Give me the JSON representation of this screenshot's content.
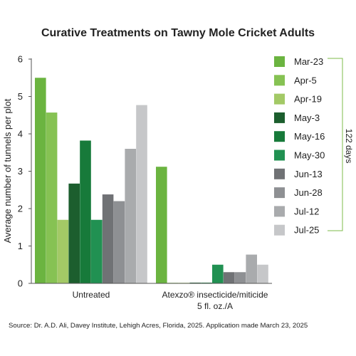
{
  "chart_data": {
    "type": "bar",
    "title": "Curative Treatments on Tawny Mole Cricket Adults",
    "ylabel": "Average number of tunnels per plot",
    "xlabel": "",
    "ylim": [
      0,
      6
    ],
    "yticks": [
      "0",
      "1",
      "2",
      "3",
      "4",
      "5",
      "6"
    ],
    "grid": false,
    "legend_position": "right",
    "categories": [
      {
        "line1": "Untreated",
        "line2": ""
      },
      {
        "line1": "Atexzo® insecticide/miticide",
        "line2": "5 fl. oz./A"
      }
    ],
    "series": [
      {
        "name": "Mar-23",
        "color": "#6bb440",
        "values": [
          5.5,
          3.12
        ]
      },
      {
        "name": "Apr-5",
        "color": "#86c253",
        "values": [
          4.57,
          0
        ]
      },
      {
        "name": "Apr-19",
        "color": "#a3c966",
        "values": [
          1.7,
          0
        ]
      },
      {
        "name": "May-3",
        "color": "#1c5e2e",
        "values": [
          2.67,
          0.02
        ]
      },
      {
        "name": "May-16",
        "color": "#177a3a",
        "values": [
          3.82,
          0.02
        ]
      },
      {
        "name": "May-30",
        "color": "#219152",
        "values": [
          1.7,
          0.5
        ]
      },
      {
        "name": "Jun-13",
        "color": "#707275",
        "values": [
          2.38,
          0.3
        ]
      },
      {
        "name": "Jun-28",
        "color": "#8e9093",
        "values": [
          2.2,
          0.3
        ]
      },
      {
        "name": "Jul-12",
        "color": "#a9abad",
        "values": [
          3.6,
          0.77
        ]
      },
      {
        "name": "Jul-25",
        "color": "#c6c7c9",
        "values": [
          4.77,
          0.5
        ]
      }
    ],
    "annotation": "122 days",
    "bracket_color": "#7cbb4a"
  },
  "source": "Source: Dr. A.D. Ali, Davey Institute, Lehigh Acres, Florida, 2025. Application made March 23, 2025"
}
